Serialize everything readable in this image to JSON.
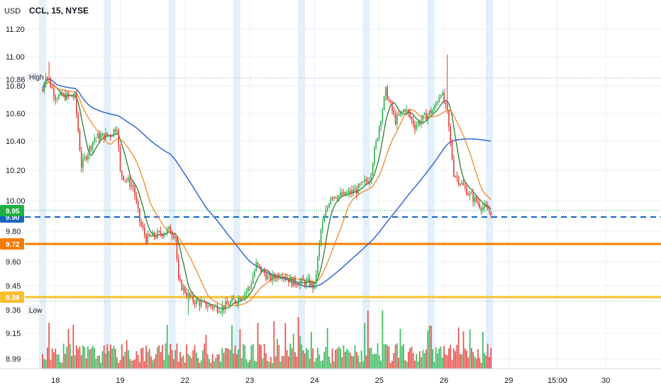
{
  "chart_data": {
    "type": "candlestick",
    "symbol_label": "CCL, 15, NYSE",
    "currency_label": "USD",
    "ylim": [
      8.95,
      11.35
    ],
    "y_ticks": [
      "11.20",
      "11.00",
      "10.80",
      "10.60",
      "10.40",
      "10.20",
      "10.00",
      "9.80",
      "9.60",
      "9.45",
      "9.15",
      "8.99"
    ],
    "x_ticks": [
      {
        "label": "18",
        "day": 0.2
      },
      {
        "label": "19",
        "day": 1.2
      },
      {
        "label": "22",
        "day": 2.2
      },
      {
        "label": "23",
        "day": 3.2
      },
      {
        "label": "24",
        "day": 4.2
      },
      {
        "label": "25",
        "day": 5.2
      },
      {
        "label": "26",
        "day": 6.2
      },
      {
        "label": "29",
        "day": 7.2
      },
      {
        "label": "15:00",
        "day": 7.95
      },
      {
        "label": "30",
        "day": 8.7
      }
    ],
    "session_bands_day": [
      0.0,
      1.0,
      2.0,
      3.0,
      4.0,
      5.0,
      6.0,
      6.9
    ],
    "high": {
      "label": "High",
      "value": 10.86
    },
    "low": {
      "label": "Low",
      "value": 9.36
    },
    "levels": [
      {
        "name": "support-9.90",
        "value": 9.9,
        "label": "9.90",
        "color": "#1565c0",
        "style": "dashed"
      },
      {
        "name": "support-9.72",
        "value": 9.72,
        "label": "9.72",
        "color": "#f57c00",
        "style": "solid"
      },
      {
        "name": "support-9.39",
        "value": 9.39,
        "label": "9.39",
        "color": "#f9c02d",
        "style": "solid"
      }
    ],
    "last_price": {
      "value": 9.95,
      "label": "9.95",
      "color": "#1eb042"
    },
    "anchors": [
      [
        0.0,
        10.65
      ],
      [
        0.05,
        10.75
      ],
      [
        0.2,
        10.62
      ],
      [
        0.5,
        10.62
      ],
      [
        0.6,
        10.22
      ],
      [
        0.8,
        10.38
      ],
      [
        1.05,
        10.4
      ],
      [
        1.15,
        10.45
      ],
      [
        1.2,
        10.18
      ],
      [
        1.4,
        10.1
      ],
      [
        1.5,
        9.9
      ],
      [
        1.6,
        9.8
      ],
      [
        1.75,
        9.82
      ],
      [
        1.95,
        9.85
      ],
      [
        2.05,
        9.82
      ],
      [
        2.1,
        9.55
      ],
      [
        2.3,
        9.45
      ],
      [
        2.5,
        9.42
      ],
      [
        2.75,
        9.4
      ],
      [
        3.0,
        9.45
      ],
      [
        3.2,
        9.52
      ],
      [
        3.3,
        9.65
      ],
      [
        3.5,
        9.57
      ],
      [
        3.7,
        9.6
      ],
      [
        3.85,
        9.55
      ],
      [
        4.1,
        9.55
      ],
      [
        4.2,
        9.52
      ],
      [
        4.3,
        9.85
      ],
      [
        4.45,
        10.05
      ],
      [
        4.65,
        10.05
      ],
      [
        4.85,
        10.08
      ],
      [
        5.05,
        10.15
      ],
      [
        5.3,
        10.65
      ],
      [
        5.45,
        10.48
      ],
      [
        5.6,
        10.55
      ],
      [
        5.75,
        10.45
      ],
      [
        6.05,
        10.55
      ],
      [
        6.15,
        10.65
      ],
      [
        6.25,
        10.52
      ],
      [
        6.35,
        10.18
      ],
      [
        6.6,
        10.05
      ],
      [
        6.8,
        9.98
      ],
      [
        6.95,
        9.95
      ]
    ],
    "volume": {
      "axis_values": [
        "9.15",
        "8.99"
      ],
      "max_relative": 1.0
    },
    "moving_averages": [
      {
        "name": "MA fast",
        "color": "#2e7d32"
      },
      {
        "name": "MA mid",
        "color": "#ef8a2c"
      },
      {
        "name": "MA slow",
        "color": "#3f6fd8"
      }
    ],
    "colors": {
      "up": "#26b24a",
      "down": "#e53935",
      "grid": "#eef0f3",
      "band": "#d9ebfb"
    },
    "grid": true
  }
}
